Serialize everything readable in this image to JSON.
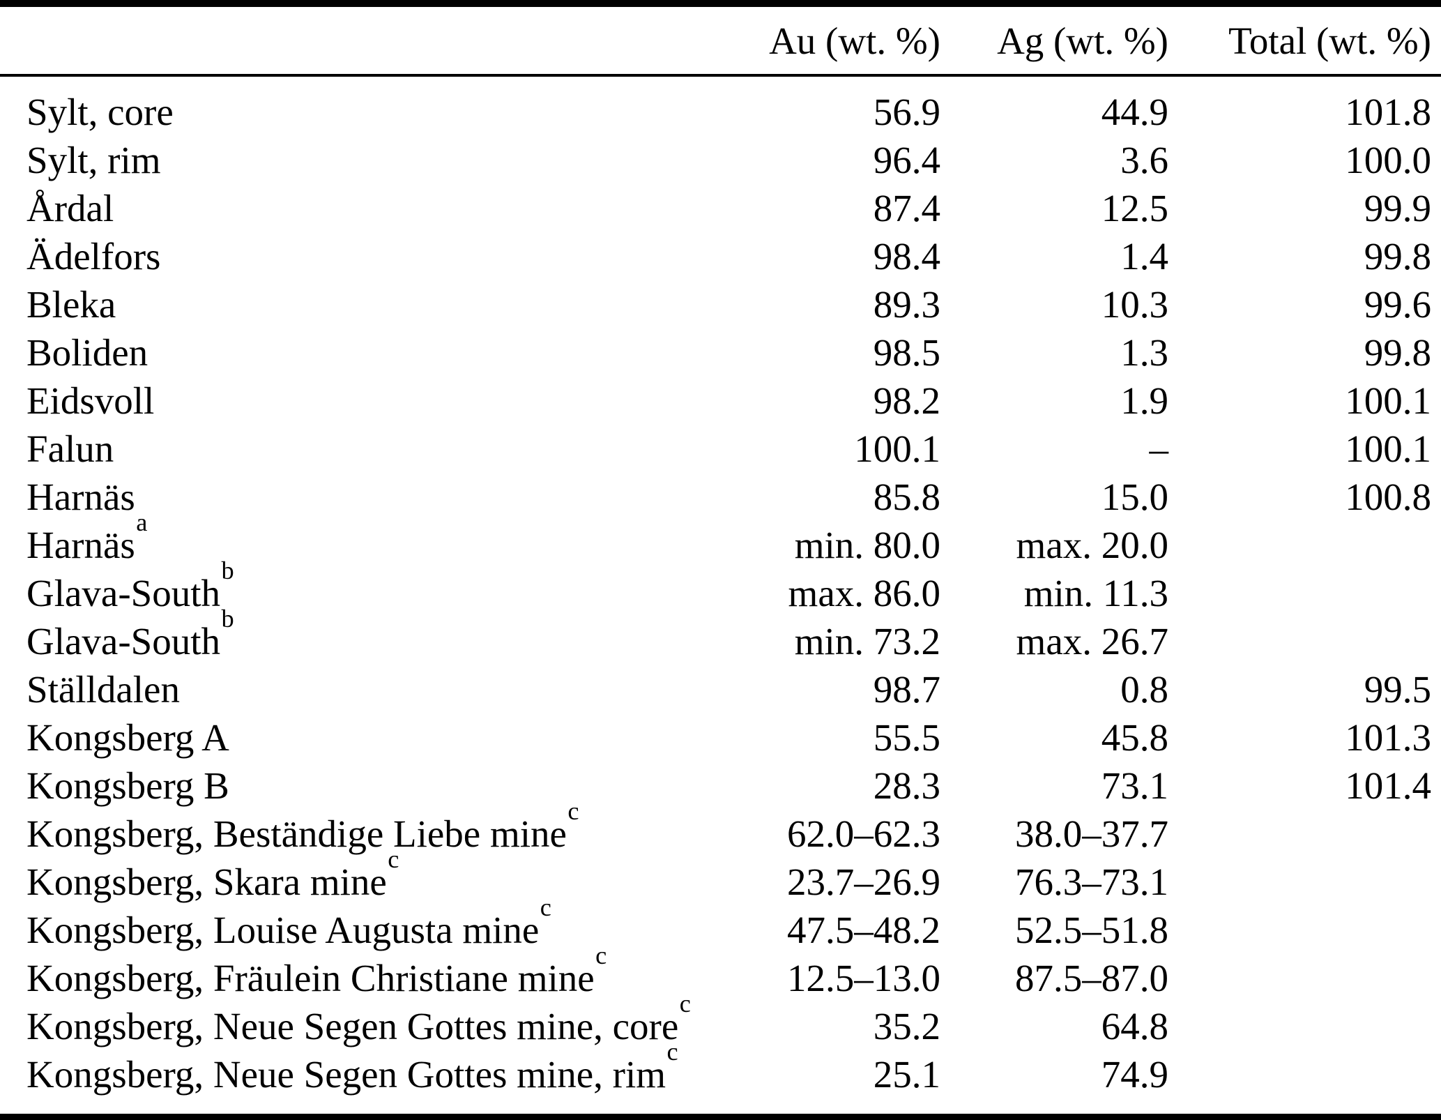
{
  "table": {
    "columns": [
      "",
      "Au (wt. %)",
      "Ag (wt. %)",
      "Total (wt. %)"
    ],
    "rows": [
      {
        "locality": "Sylt, core",
        "sup": "",
        "au": "56.9",
        "ag": "44.9",
        "total": "101.8"
      },
      {
        "locality": "Sylt, rim",
        "sup": "",
        "au": "96.4",
        "ag": "3.6",
        "total": "100.0"
      },
      {
        "locality": "Årdal",
        "sup": "",
        "au": "87.4",
        "ag": "12.5",
        "total": "99.9"
      },
      {
        "locality": "Ädelfors",
        "sup": "",
        "au": "98.4",
        "ag": "1.4",
        "total": "99.8"
      },
      {
        "locality": "Bleka",
        "sup": "",
        "au": "89.3",
        "ag": "10.3",
        "total": "99.6"
      },
      {
        "locality": "Boliden",
        "sup": "",
        "au": "98.5",
        "ag": "1.3",
        "total": "99.8"
      },
      {
        "locality": "Eidsvoll",
        "sup": "",
        "au": "98.2",
        "ag": "1.9",
        "total": "100.1"
      },
      {
        "locality": "Falun",
        "sup": "",
        "au": "100.1",
        "ag": "–",
        "total": "100.1"
      },
      {
        "locality": "Harnäs",
        "sup": "",
        "au": "85.8",
        "ag": "15.0",
        "total": "100.8"
      },
      {
        "locality": "Harnäs",
        "sup": "a",
        "au": "min. 80.0",
        "ag": "max. 20.0",
        "total": ""
      },
      {
        "locality": "Glava-South",
        "sup": "b",
        "au": "max. 86.0",
        "ag": "min. 11.3",
        "total": ""
      },
      {
        "locality": "Glava-South",
        "sup": "b",
        "au": "min. 73.2",
        "ag": "max. 26.7",
        "total": ""
      },
      {
        "locality": "Ställdalen",
        "sup": "",
        "au": "98.7",
        "ag": "0.8",
        "total": "99.5"
      },
      {
        "locality": "Kongsberg A",
        "sup": "",
        "au": "55.5",
        "ag": "45.8",
        "total": "101.3"
      },
      {
        "locality": "Kongsberg B",
        "sup": "",
        "au": "28.3",
        "ag": "73.1",
        "total": "101.4"
      },
      {
        "locality": "Kongsberg, Beständige Liebe mine",
        "sup": "c",
        "au": "62.0–62.3",
        "ag": "38.0–37.7",
        "total": ""
      },
      {
        "locality": "Kongsberg, Skara mine",
        "sup": "c",
        "au": "23.7–26.9",
        "ag": "76.3–73.1",
        "total": ""
      },
      {
        "locality": "Kongsberg, Louise Augusta mine",
        "sup": "c",
        "au": "47.5–48.2",
        "ag": "52.5–51.8",
        "total": ""
      },
      {
        "locality": "Kongsberg, Fräulein Christiane mine",
        "sup": "c",
        "au": "12.5–13.0",
        "ag": "87.5–87.0",
        "total": ""
      },
      {
        "locality": "Kongsberg, Neue Segen Gottes mine, core",
        "sup": "c",
        "au": "35.2",
        "ag": "64.8",
        "total": ""
      },
      {
        "locality": "Kongsberg, Neue Segen Gottes mine, rim",
        "sup": "c",
        "au": "25.1",
        "ag": "74.9",
        "total": ""
      }
    ]
  }
}
